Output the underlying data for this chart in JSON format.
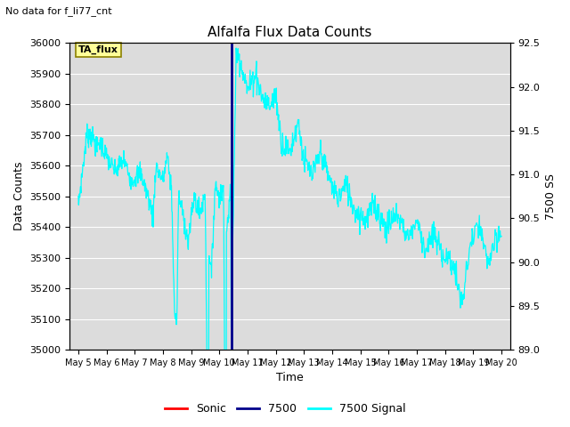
{
  "title": "Alfalfa Flux Data Counts",
  "subtitle": "No data for f_li77_cnt",
  "xlabel": "Time",
  "ylabel": "Data Counts",
  "ylabel_right": "7500 SS",
  "ylim": [
    35000,
    36000
  ],
  "ylim_right": [
    89.0,
    92.5
  ],
  "xtick_labels": [
    "May 5",
    "May 6",
    "May 7",
    "May 8",
    "May 9",
    "May 10",
    "May 11",
    "May 12",
    "May 13",
    "May 14",
    "May 15",
    "May 16",
    "May 17",
    "May 18",
    "May 19",
    "May 20"
  ],
  "hline_value": 36000,
  "hline_color": "#00008B",
  "vline_day": 10.42,
  "vline_color": "#00008B",
  "signal_color": "#00FFFF",
  "sonic_color": "#FF0000",
  "bg_color": "#DCDCDC",
  "annotation_box_text": "TA_flux",
  "annotation_box_facecolor": "#FFFF99",
  "annotation_box_edgecolor": "#8B8000",
  "legend_entries": [
    "Sonic",
    "7500",
    "7500 Signal"
  ],
  "legend_colors": [
    "#FF0000",
    "#00008B",
    "#00FFFF"
  ],
  "yticks_left": [
    35000,
    35100,
    35200,
    35300,
    35400,
    35500,
    35600,
    35700,
    35800,
    35900,
    36000
  ],
  "yticks_right": [
    89.0,
    89.5,
    90.0,
    90.5,
    91.0,
    91.5,
    92.0,
    92.5
  ]
}
